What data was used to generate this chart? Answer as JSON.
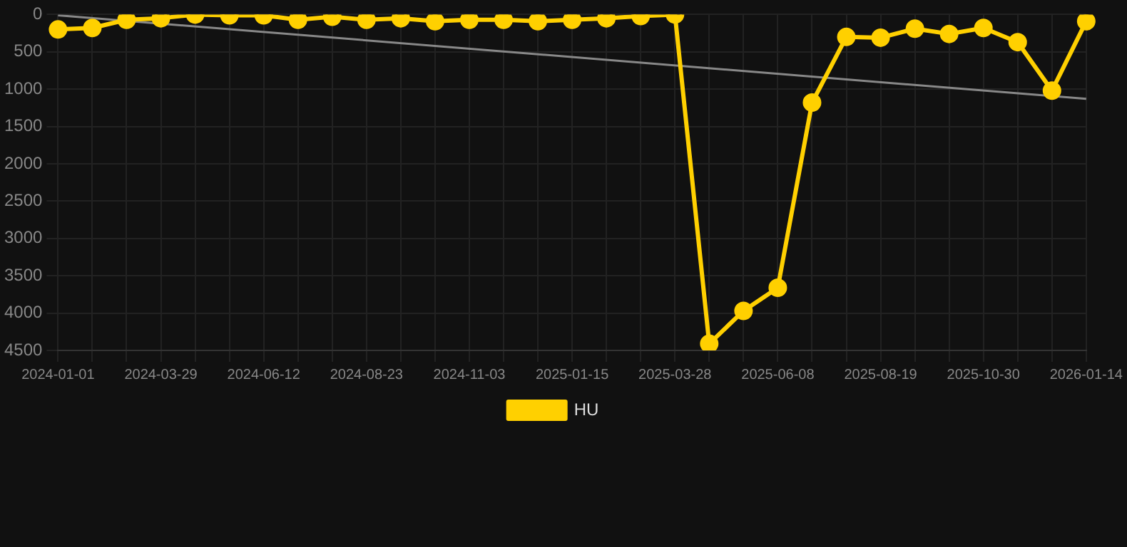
{
  "chart_data": {
    "type": "line",
    "categories": [
      "2024-01-01",
      null,
      null,
      "2024-03-29",
      null,
      null,
      "2024-06-12",
      null,
      null,
      "2024-08-23",
      null,
      null,
      "2024-11-03",
      null,
      null,
      "2025-01-15",
      null,
      null,
      "2025-03-28",
      null,
      null,
      "2025-06-08",
      null,
      null,
      "2025-08-19",
      null,
      null,
      "2025-10-30",
      null,
      null,
      "2026-01-14"
    ],
    "series": [
      {
        "name": "HU",
        "color": "#ffd000",
        "values": [
          200,
          180,
          70,
          50,
          0,
          10,
          10,
          70,
          30,
          70,
          50,
          90,
          70,
          70,
          90,
          70,
          50,
          20,
          0,
          4410,
          3970,
          3660,
          1180,
          300,
          310,
          190,
          260,
          180,
          370,
          1020,
          90
        ]
      },
      {
        "type": "line",
        "color": "#888888",
        "marker": "none",
        "values": [
          10,
          null,
          null,
          null,
          null,
          null,
          null,
          null,
          null,
          null,
          null,
          null,
          null,
          null,
          null,
          null,
          null,
          null,
          null,
          null,
          null,
          null,
          null,
          null,
          null,
          null,
          null,
          null,
          null,
          null,
          1130
        ]
      }
    ],
    "ylim": [
      4500,
      0
    ],
    "yticks": [
      0,
      500,
      1000,
      1500,
      2000,
      2500,
      3000,
      3500,
      4000,
      4500
    ],
    "grid": true,
    "legend": "bottom",
    "marker": "circle",
    "line_style": "solid"
  }
}
